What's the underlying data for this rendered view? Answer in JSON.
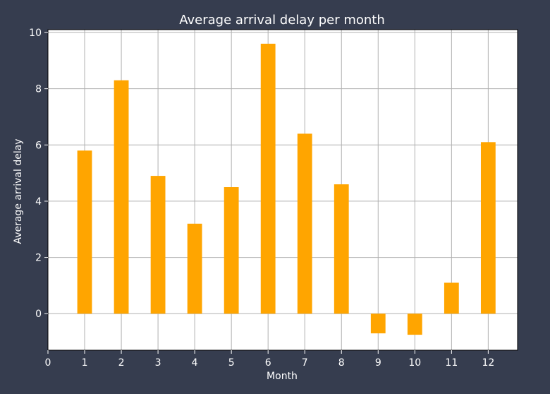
{
  "chart_data": {
    "type": "bar",
    "title": "Average arrival delay per month",
    "xlabel": "Month",
    "ylabel": "Average arrival delay",
    "categories": [
      1,
      2,
      3,
      4,
      5,
      6,
      7,
      8,
      9,
      10,
      11,
      12
    ],
    "values": [
      5.8,
      8.3,
      4.9,
      3.2,
      4.5,
      9.6,
      6.4,
      4.6,
      -0.7,
      -0.75,
      1.1,
      6.1
    ],
    "xlim": [
      0,
      12.8
    ],
    "ylim": [
      -1.3,
      10.1
    ],
    "x_ticks": [
      0,
      1,
      2,
      3,
      4,
      5,
      6,
      7,
      8,
      9,
      10,
      11,
      12
    ],
    "y_ticks": [
      0,
      2,
      4,
      6,
      8,
      10
    ],
    "grid": true,
    "legend": false,
    "colors": {
      "bar": "#ffa500",
      "plot_background": "#ffffff",
      "figure_background": "#363d4f",
      "grid": "#b0b0b0",
      "text": "#ffffff",
      "spine": "#000000"
    }
  }
}
